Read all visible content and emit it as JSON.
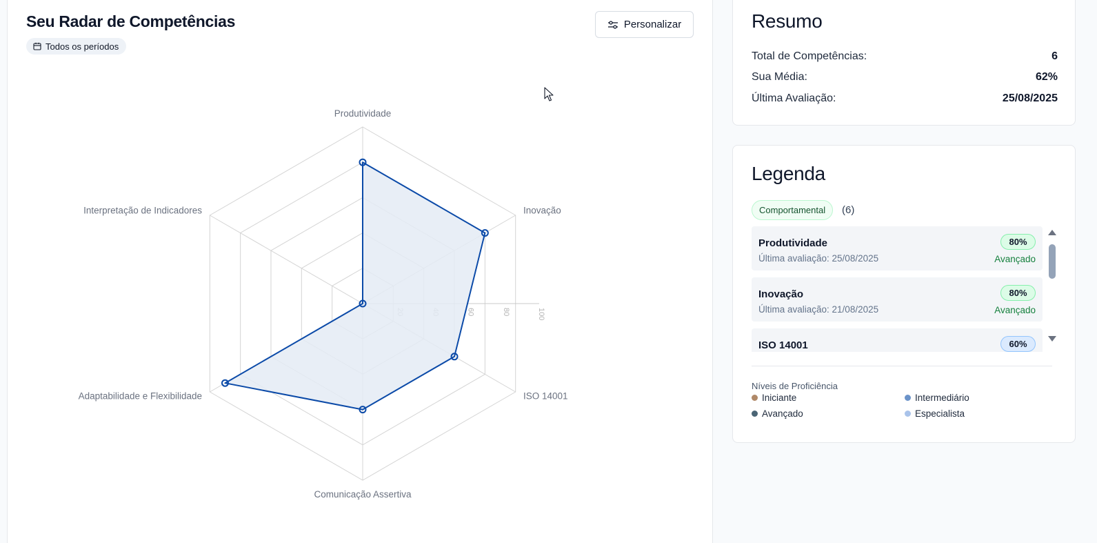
{
  "header": {
    "title": "Seu Radar de Competências",
    "period_filter": "Todos os períodos",
    "customize_label": "Personalizar"
  },
  "chart_data": {
    "type": "radar",
    "categories": [
      "Produtividade",
      "Inovação",
      "ISO 14001",
      "Comunicação Assertiva",
      "Adaptabilidade e Flexibilidade",
      "Interpretação de Indicadores"
    ],
    "series": [
      {
        "values": [
          80,
          80,
          60,
          60,
          90,
          0
        ]
      }
    ],
    "rlim": [
      0,
      100
    ],
    "r_ticks": [
      "20",
      "40",
      "60",
      "80",
      "100"
    ],
    "color": "#0b4aa8",
    "fill": "#e4ebf5",
    "grid": true
  },
  "summary": {
    "title": "Resumo",
    "rows": [
      {
        "label": "Total de Competências:",
        "value": "6"
      },
      {
        "label": "Sua Média:",
        "value": "62%"
      },
      {
        "label": "Última Avaliação:",
        "value": "25/08/2025"
      }
    ]
  },
  "legend": {
    "title": "Legenda",
    "category": "Comportamental",
    "count": "(6)",
    "items": [
      {
        "name": "Produtividade",
        "date": "Última avaliação: 25/08/2025",
        "percent": "80%",
        "level": "Avançado"
      },
      {
        "name": "Inovação",
        "date": "Última avaliação: 21/08/2025",
        "percent": "80%",
        "level": "Avançado"
      },
      {
        "name": "ISO 14001",
        "date": "",
        "percent": "60%",
        "level": ""
      }
    ],
    "levels_title": "Níveis de Proficiência",
    "levels": [
      {
        "label": "Iniciante",
        "color": "#b08968"
      },
      {
        "label": "Intermediário",
        "color": "#6b93c9"
      },
      {
        "label": "Avançado",
        "color": "#4b6575"
      },
      {
        "label": "Especialista",
        "color": "#a9c3ea"
      }
    ]
  }
}
